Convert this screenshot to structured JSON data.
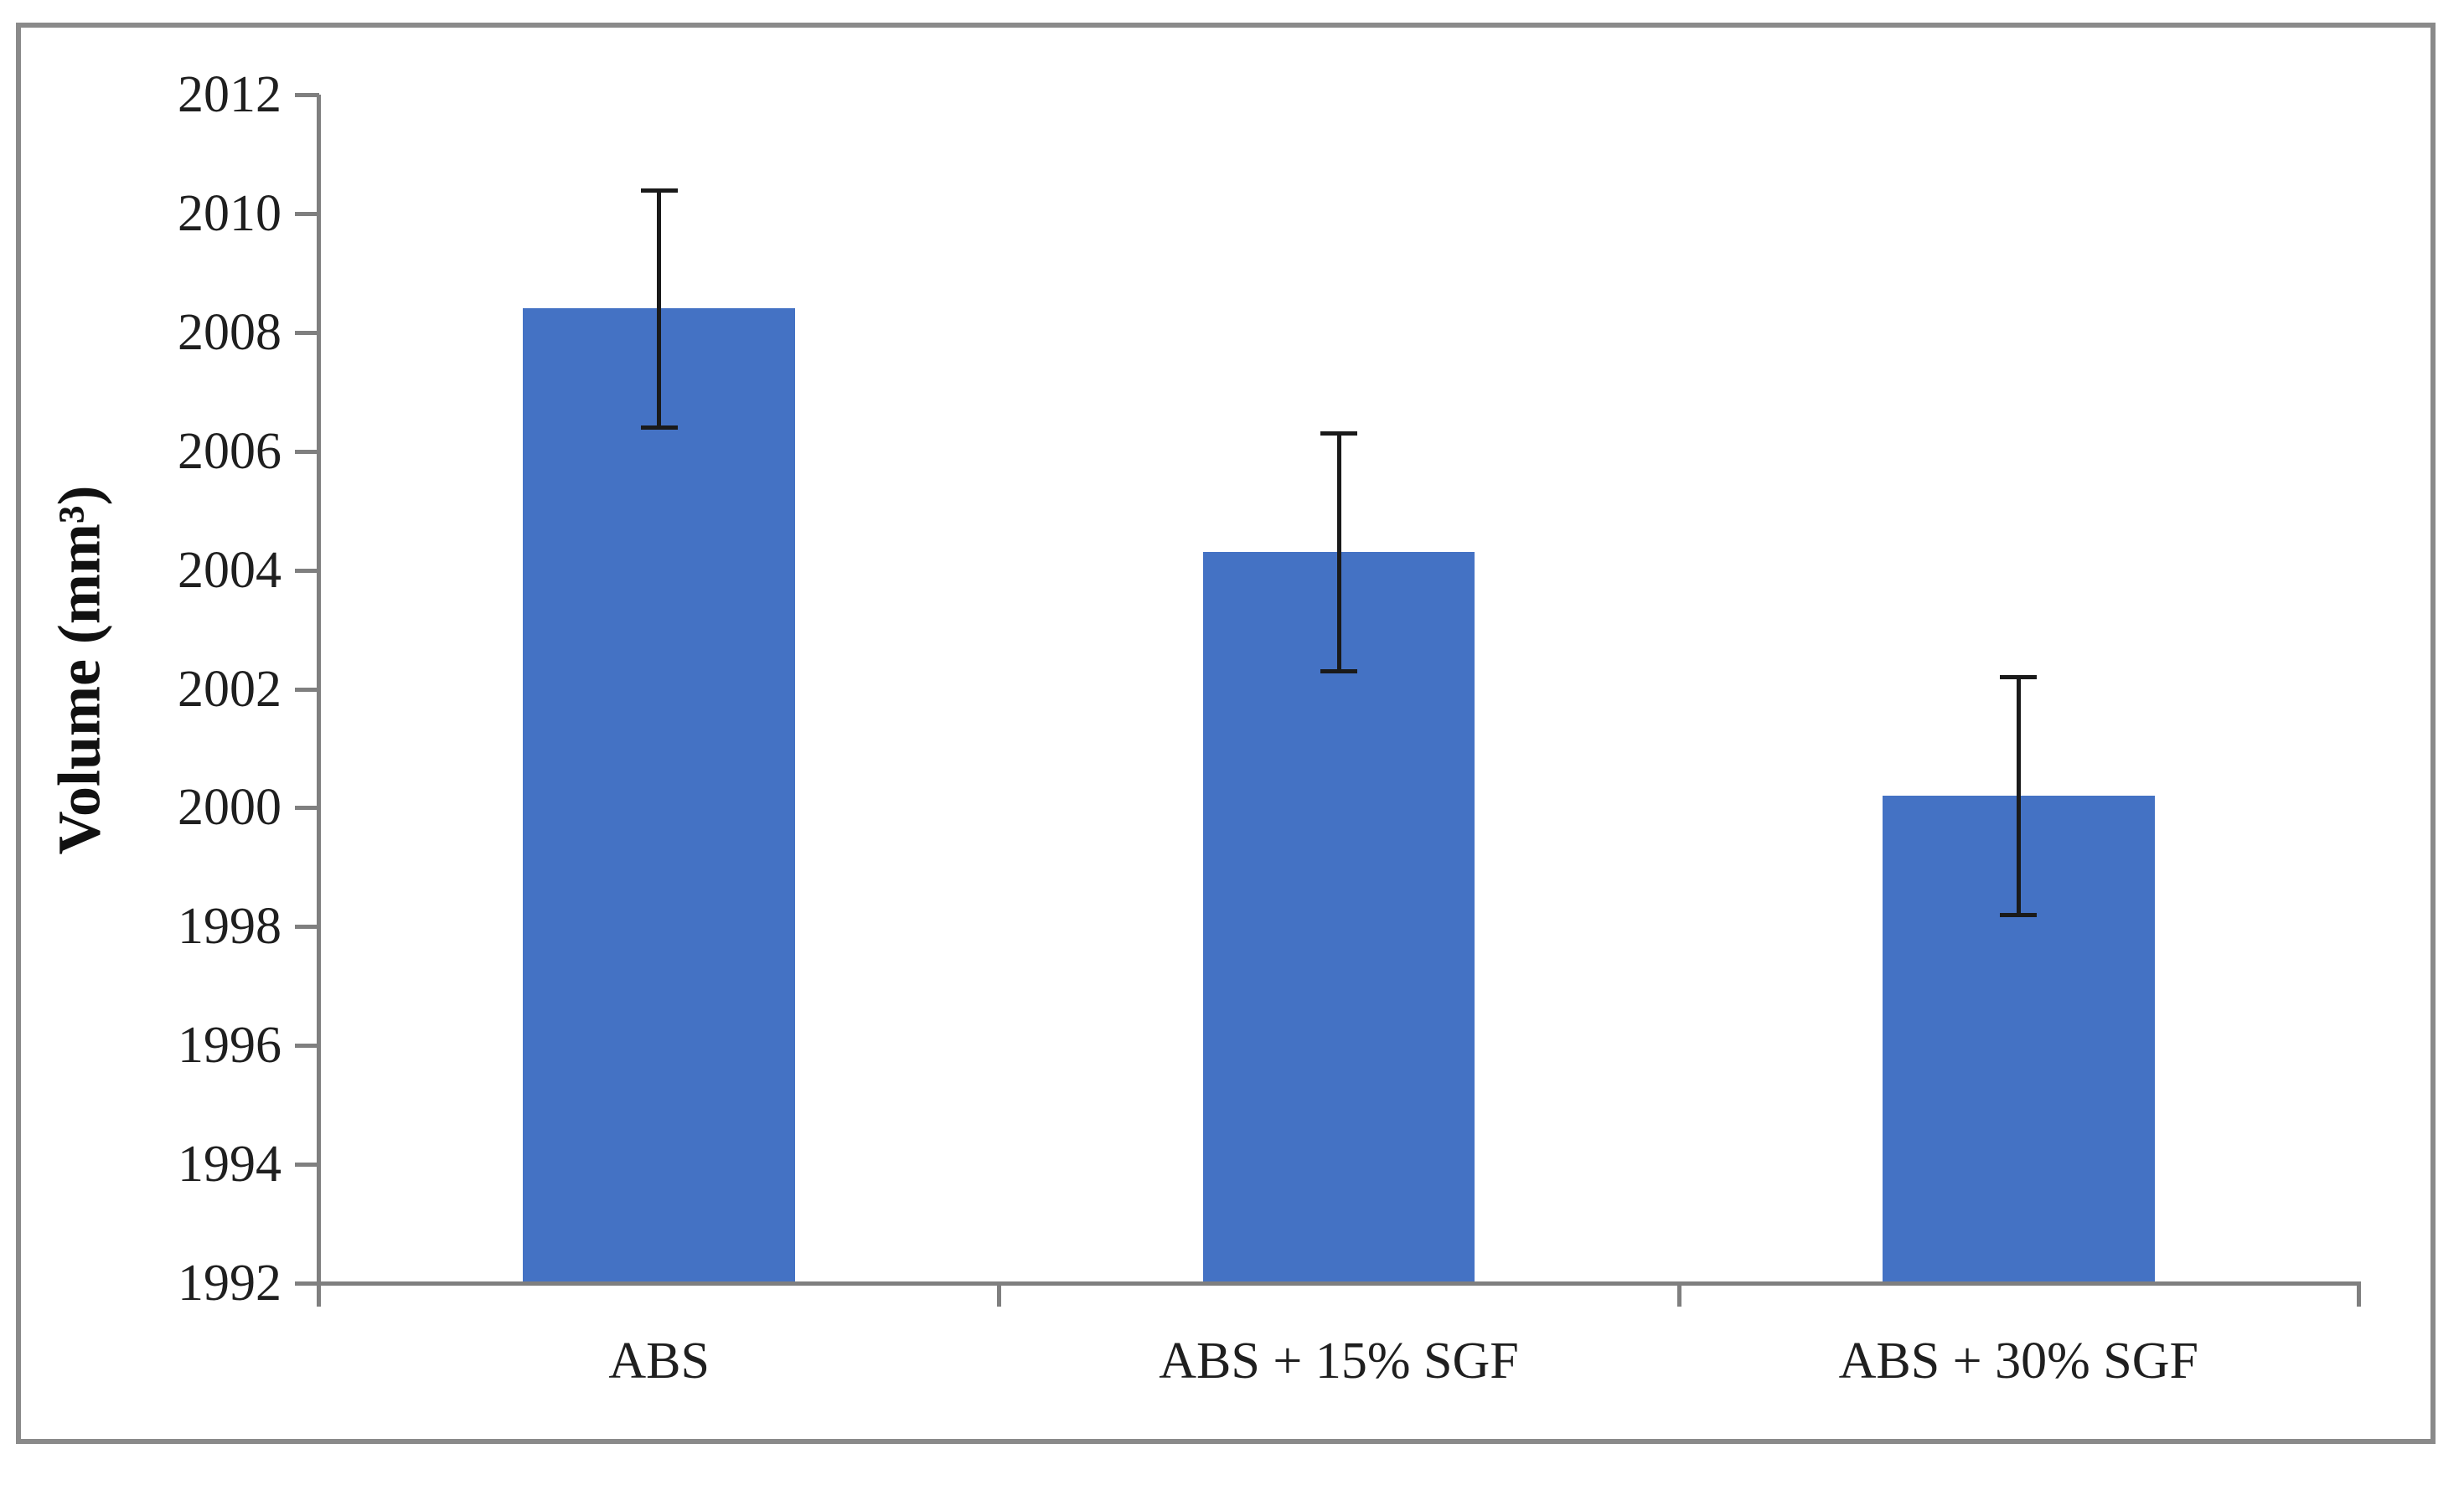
{
  "chart_data": {
    "type": "bar",
    "title": "",
    "xlabel": "",
    "ylabel": "Volume (mm³)",
    "categories": [
      "ABS",
      "ABS + 15% SGF",
      "ABS + 30% SGF"
    ],
    "values": [
      2008.4,
      2004.3,
      2000.2
    ],
    "error_bars": [
      2.0,
      2.0,
      2.0
    ],
    "ylim": [
      1992,
      2012
    ],
    "ytick_step": 2,
    "yticks": [
      2012,
      2010,
      2008,
      2006,
      2004,
      2002,
      2000,
      1998,
      1996,
      1994,
      1992
    ],
    "grid": false,
    "legend": false,
    "bar_color": "#4472C4",
    "error_bar_color": "#1a1a1a",
    "axis_color": "#7f7f7f",
    "frame_color": "#8a8a8a",
    "text_color": "#1f1f1f"
  }
}
